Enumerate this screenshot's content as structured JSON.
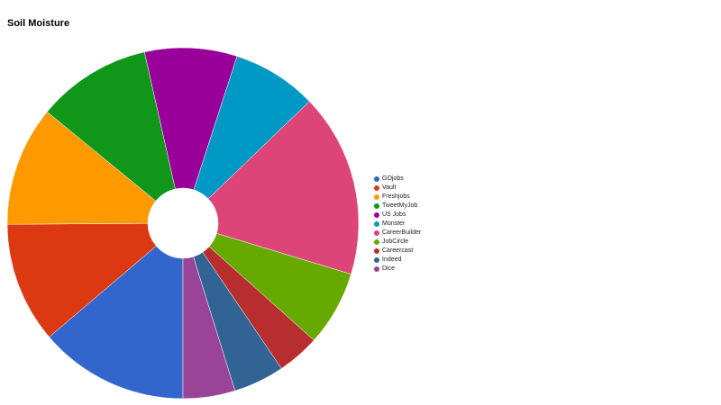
{
  "chart_data": {
    "type": "pie",
    "title": "Soil Moisture",
    "donut": true,
    "start_angle_deg": 180,
    "direction": "clockwise",
    "legend_position": "right",
    "slices": [
      {
        "label": "GOjobs",
        "value": 14.1,
        "color": "#3366cc"
      },
      {
        "label": "Vault",
        "value": 11.4,
        "color": "#dc3912"
      },
      {
        "label": "Freshjobs",
        "value": 11.3,
        "color": "#ff9900"
      },
      {
        "label": "TweetMyJob",
        "value": 10.8,
        "color": "#109618"
      },
      {
        "label": "US Jobs",
        "value": 8.7,
        "color": "#990099"
      },
      {
        "label": "Monster",
        "value": 8.0,
        "color": "#0099c6"
      },
      {
        "label": "CareerBuilder",
        "value": 17.3,
        "color": "#dd4477"
      },
      {
        "label": "JobCircle",
        "value": 7.1,
        "color": "#66aa00"
      },
      {
        "label": "Careercast",
        "value": 4.0,
        "color": "#b82e2e"
      },
      {
        "label": "Indeed",
        "value": 4.8,
        "color": "#316395"
      },
      {
        "label": "Dice",
        "value": 4.9,
        "color": "#994499"
      }
    ]
  }
}
